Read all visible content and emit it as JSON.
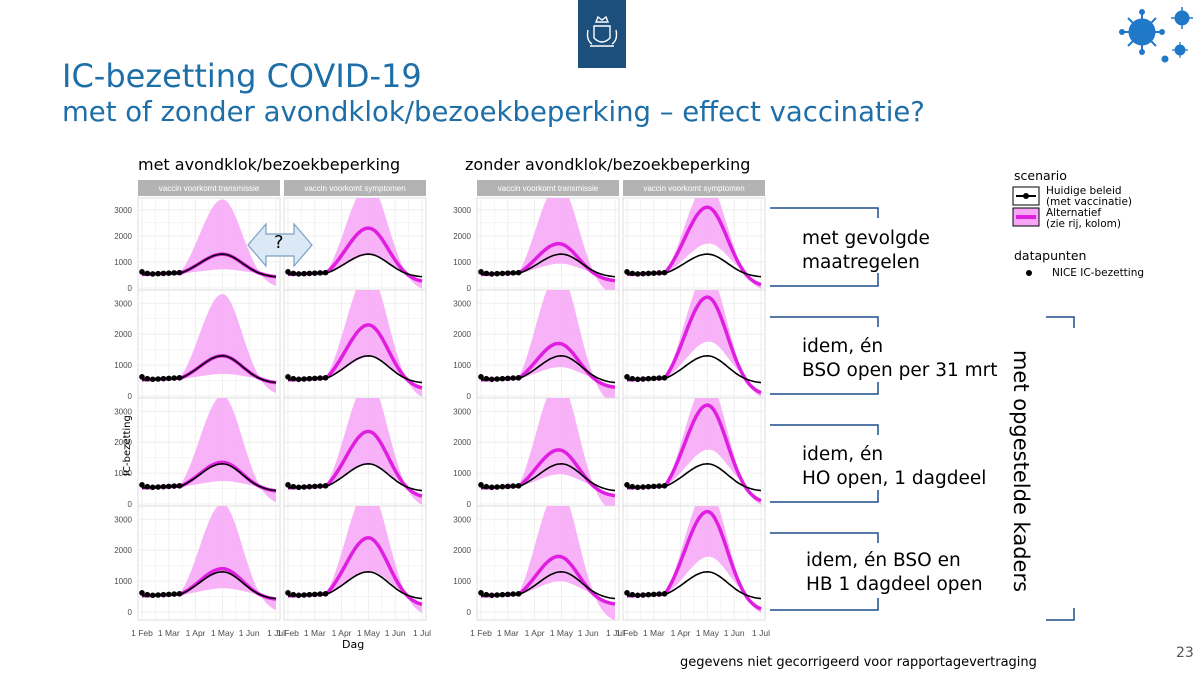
{
  "slide": {
    "title": "IC-bezetting COVID-19",
    "subtitle": "met of zonder avondklok/bezoekbeperking – effect vaccinatie?",
    "page_number": "23",
    "footnote": "gegevens niet gecorrigeerd voor rapportagevertraging",
    "arrow_label": "?",
    "brand_color": "#1e6fa8"
  },
  "columns": {
    "left_header": "met avondklok/bezoekbeperking",
    "right_header": "zonder avondklok/bezoekbeperking",
    "panel_strip_1": "vaccin voorkomt transmissie",
    "panel_strip_2": "vaccin voorkomt symptomen"
  },
  "rows": [
    {
      "label_line1": "met gevolgde",
      "label_line2": "maatregelen"
    },
    {
      "label_line1": "idem, én",
      "label_line2": "BSO open per 31 mrt"
    },
    {
      "label_line1": "idem, én",
      "label_line2": "HO open, 1 dagdeel"
    },
    {
      "label_line1": "idem, én BSO en",
      "label_line2": "HB 1 dagdeel open"
    }
  ],
  "side_label": "met opgestelde kaders",
  "legend": {
    "title": "scenario",
    "item1_line1": "Huidige beleid",
    "item1_line2": "(met vaccinatie)",
    "item2_line1": "Alternatief",
    "item2_line2": "(zie rij, kolom)",
    "points_title": "datapunten",
    "points_label": "NICE IC-bezetting"
  },
  "chart_data": {
    "type": "line",
    "xlabel": "Dag",
    "ylabel": "IC-bezetting",
    "x_ticks": [
      "1 Feb",
      "1 Mar",
      "1 Apr",
      "1 May",
      "1 Jun",
      "1 Jul"
    ],
    "y_ticks": [
      0,
      1000,
      2000,
      3000
    ],
    "ylim": [
      0,
      3300
    ],
    "xlim_months": [
      0,
      5
    ],
    "series_colors": {
      "baseline": "#000000",
      "alternative": "#e01ee0",
      "band": "#f7a6f7",
      "points": "#000000"
    },
    "series": [
      {
        "name": "Huidige beleid (met vaccinatie)",
        "peak_month": 3.0,
        "peak_value": 1300
      },
      {
        "name": "NICE IC-bezetting",
        "x_months": [
          0.0,
          0.2,
          0.4,
          0.6,
          0.8,
          1.0,
          1.2,
          1.4
        ],
        "values": [
          620,
          560,
          540,
          550,
          560,
          570,
          580,
          590
        ]
      }
    ],
    "panels": [
      {
        "row": 1,
        "column": "met avondklok/bezoekbeperking",
        "strip": "vaccin voorkomt transmissie",
        "alternative_peak": 1300,
        "alternative_peak_month": 3.0,
        "band_upper_peak": 3400
      },
      {
        "row": 1,
        "column": "met avondklok/bezoekbeperking",
        "strip": "vaccin voorkomt symptomen",
        "alternative_peak": 2300,
        "alternative_peak_month": 3.0,
        "band_upper_peak": 4000
      },
      {
        "row": 1,
        "column": "zonder avondklok/bezoekbeperking",
        "strip": "vaccin voorkomt transmissie",
        "alternative_peak": 1700,
        "alternative_peak_month": 2.9,
        "band_upper_peak": 4000
      },
      {
        "row": 1,
        "column": "zonder avondklok/bezoekbeperking",
        "strip": "vaccin voorkomt symptomen",
        "alternative_peak": 3100,
        "alternative_peak_month": 3.0,
        "band_upper_peak": 4000
      },
      {
        "row": 2,
        "column": "met avondklok/bezoekbeperking",
        "strip": "vaccin voorkomt transmissie",
        "alternative_peak": 1300,
        "alternative_peak_month": 3.0,
        "band_upper_peak": 3300
      },
      {
        "row": 2,
        "column": "met avondklok/bezoekbeperking",
        "strip": "vaccin voorkomt symptomen",
        "alternative_peak": 2300,
        "alternative_peak_month": 3.0,
        "band_upper_peak": 4000
      },
      {
        "row": 2,
        "column": "zonder avondklok/bezoekbeperking",
        "strip": "vaccin voorkomt transmissie",
        "alternative_peak": 1700,
        "alternative_peak_month": 2.9,
        "band_upper_peak": 4000
      },
      {
        "row": 2,
        "column": "zonder avondklok/bezoekbeperking",
        "strip": "vaccin voorkomt symptomen",
        "alternative_peak": 3200,
        "alternative_peak_month": 3.0,
        "band_upper_peak": 4000
      },
      {
        "row": 3,
        "column": "met avondklok/bezoekbeperking",
        "strip": "vaccin voorkomt transmissie",
        "alternative_peak": 1350,
        "alternative_peak_month": 3.0,
        "band_upper_peak": 3500
      },
      {
        "row": 3,
        "column": "met avondklok/bezoekbeperking",
        "strip": "vaccin voorkomt symptomen",
        "alternative_peak": 2350,
        "alternative_peak_month": 3.0,
        "band_upper_peak": 4000
      },
      {
        "row": 3,
        "column": "zonder avondklok/bezoekbeperking",
        "strip": "vaccin voorkomt transmissie",
        "alternative_peak": 1750,
        "alternative_peak_month": 2.9,
        "band_upper_peak": 4000
      },
      {
        "row": 3,
        "column": "zonder avondklok/bezoekbeperking",
        "strip": "vaccin voorkomt symptomen",
        "alternative_peak": 3200,
        "alternative_peak_month": 3.0,
        "band_upper_peak": 4000
      },
      {
        "row": 4,
        "column": "met avondklok/bezoekbeperking",
        "strip": "vaccin voorkomt transmissie",
        "alternative_peak": 1400,
        "alternative_peak_month": 3.0,
        "band_upper_peak": 3500
      },
      {
        "row": 4,
        "column": "met avondklok/bezoekbeperking",
        "strip": "vaccin voorkomt symptomen",
        "alternative_peak": 2400,
        "alternative_peak_month": 3.0,
        "band_upper_peak": 4000
      },
      {
        "row": 4,
        "column": "zonder avondklok/bezoekbeperking",
        "strip": "vaccin voorkomt transmissie",
        "alternative_peak": 1800,
        "alternative_peak_month": 2.9,
        "band_upper_peak": 4000
      },
      {
        "row": 4,
        "column": "zonder avondklok/bezoekbeperking",
        "strip": "vaccin voorkomt symptomen",
        "alternative_peak": 3250,
        "alternative_peak_month": 3.0,
        "band_upper_peak": 4000
      }
    ]
  }
}
